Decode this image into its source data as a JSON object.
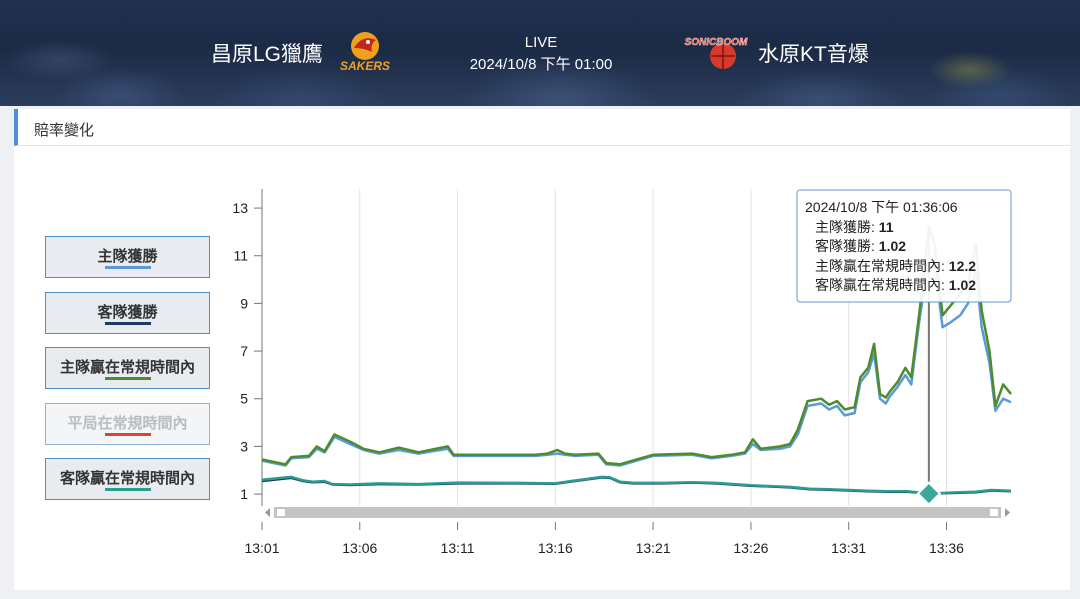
{
  "header": {
    "home_team": "昌原LG獵鷹",
    "home_logo_text": "SAKERS",
    "status": "LIVE",
    "datetime": "2024/10/8 下午 01:00",
    "away_team": "水原KT音爆",
    "away_logo_text": "SONICBOOM"
  },
  "panel": {
    "title": "賠率變化"
  },
  "legend": [
    {
      "label": "主隊獲勝",
      "color": "#5b9bd5",
      "active": true
    },
    {
      "label": "客隊獲勝",
      "color": "#1f3864",
      "active": true
    },
    {
      "label": "主隊贏在常規時間內",
      "color": "#4f8a2b",
      "active": true
    },
    {
      "label": "平局在常規時間內",
      "color": "#e0413a",
      "active": false
    },
    {
      "label": "客隊贏在常規時間內",
      "color": "#2a9d8f",
      "active": true
    }
  ],
  "tooltip": {
    "time": "2024/10/8 下午 01:36:06",
    "rows": [
      {
        "label": "主隊獲勝: ",
        "value": "11"
      },
      {
        "label": "客隊獲勝: ",
        "value": "1.02"
      },
      {
        "label": "主隊贏在常規時間內: ",
        "value": "12.2"
      },
      {
        "label": "客隊贏在常規時間內: ",
        "value": "1.02"
      }
    ]
  },
  "chart_data": {
    "type": "line",
    "x_unit": "minutes",
    "xlim": [
      1,
      39.3
    ],
    "ylim": [
      0.5,
      13.8
    ],
    "x_ticks": [
      1,
      6,
      11,
      16,
      21,
      26,
      31,
      36
    ],
    "x_tick_labels": [
      "13:01",
      "13:06",
      "13:11",
      "13:16",
      "13:21",
      "13:26",
      "13:31",
      "13:36"
    ],
    "y_ticks": [
      1,
      3,
      5,
      7,
      9,
      11,
      13
    ],
    "hover_x": 35.1,
    "series": [
      {
        "name": "主隊獲勝",
        "color": "#5b9bd5",
        "x": [
          1,
          2.2,
          2.5,
          3.4,
          3.8,
          4.2,
          4.7,
          5.5,
          6.2,
          7,
          8,
          9,
          10.5,
          10.8,
          13,
          15,
          15.6,
          16.1,
          16.5,
          17,
          18.2,
          18.6,
          19.3,
          21,
          23,
          24,
          25,
          25.7,
          26.1,
          26.5,
          27.5,
          28,
          28.4,
          28.9,
          29.6,
          30,
          30.4,
          30.8,
          31.3,
          31.6,
          32,
          32.3,
          32.6,
          32.9,
          33.1,
          33.5,
          33.9,
          34.2,
          34.6,
          35.1,
          35.4,
          35.8,
          36.2,
          36.7,
          37.1,
          37.5,
          37.8,
          38.2,
          38.5,
          38.9,
          39.3
        ],
        "y": [
          2.4,
          2.2,
          2.5,
          2.55,
          2.9,
          2.75,
          3.4,
          3.1,
          2.85,
          2.7,
          2.85,
          2.7,
          2.9,
          2.6,
          2.6,
          2.6,
          2.65,
          2.7,
          2.65,
          2.6,
          2.65,
          2.25,
          2.2,
          2.6,
          2.65,
          2.5,
          2.6,
          2.7,
          3.1,
          2.85,
          2.9,
          3.0,
          3.5,
          4.7,
          4.8,
          4.55,
          4.7,
          4.3,
          4.4,
          5.7,
          6.1,
          6.9,
          5.0,
          4.8,
          5.1,
          5.5,
          6.0,
          5.6,
          8.2,
          11.0,
          10.6,
          8.0,
          8.2,
          8.5,
          9.0,
          10.4,
          8.0,
          6.5,
          4.5,
          5.0,
          4.85
        ]
      },
      {
        "name": "客隊獲勝",
        "color": "#1f3864",
        "x": [
          1,
          2.5,
          3.1,
          3.6,
          4.2,
          4.6,
          5.5,
          7,
          9,
          11,
          14,
          16,
          17,
          18.4,
          18.8,
          19.3,
          20,
          21.5,
          23,
          24.2,
          26,
          28,
          29,
          30,
          31,
          32,
          33,
          34,
          35.1,
          36.5,
          37.5,
          38.3,
          39.3
        ],
        "y": [
          1.55,
          1.68,
          1.55,
          1.5,
          1.52,
          1.4,
          1.38,
          1.42,
          1.4,
          1.45,
          1.45,
          1.43,
          1.55,
          1.7,
          1.68,
          1.5,
          1.45,
          1.45,
          1.48,
          1.45,
          1.35,
          1.28,
          1.2,
          1.18,
          1.15,
          1.12,
          1.1,
          1.1,
          1.02,
          1.05,
          1.08,
          1.15,
          1.12
        ]
      },
      {
        "name": "主隊贏在常規時間內",
        "color": "#4f8a2b",
        "x": [
          1,
          2.2,
          2.5,
          3.4,
          3.8,
          4.2,
          4.7,
          5.5,
          6.2,
          7,
          8,
          9,
          10.5,
          10.8,
          13,
          15,
          15.6,
          16.1,
          16.5,
          17,
          18.2,
          18.6,
          19.3,
          21,
          23,
          24,
          25,
          25.7,
          26.1,
          26.5,
          27.5,
          28,
          28.4,
          28.9,
          29.6,
          30,
          30.4,
          30.8,
          31.3,
          31.6,
          32,
          32.3,
          32.6,
          32.9,
          33.1,
          33.5,
          33.9,
          34.2,
          34.6,
          35.1,
          35.4,
          35.8,
          36.2,
          36.7,
          37.1,
          37.5,
          37.8,
          38.2,
          38.5,
          38.9,
          39.3
        ],
        "y": [
          2.45,
          2.25,
          2.55,
          2.6,
          3.0,
          2.8,
          3.5,
          3.2,
          2.9,
          2.75,
          2.95,
          2.75,
          3.0,
          2.65,
          2.65,
          2.65,
          2.7,
          2.85,
          2.7,
          2.65,
          2.7,
          2.3,
          2.25,
          2.65,
          2.7,
          2.55,
          2.65,
          2.75,
          3.3,
          2.9,
          3.0,
          3.1,
          3.7,
          4.9,
          5.0,
          4.75,
          4.9,
          4.55,
          4.65,
          5.9,
          6.3,
          7.3,
          5.2,
          5.05,
          5.3,
          5.7,
          6.3,
          5.9,
          8.5,
          12.2,
          11.5,
          8.5,
          8.9,
          9.4,
          9.8,
          11.5,
          8.7,
          7.0,
          4.7,
          5.6,
          5.2
        ]
      },
      {
        "name": "客隊贏在常規時間內",
        "color": "#2a9d8f",
        "x": [
          1,
          2.5,
          3.1,
          3.6,
          4.2,
          4.6,
          5.5,
          7,
          9,
          11,
          14,
          16,
          17,
          18.4,
          18.8,
          19.3,
          20,
          21.5,
          23,
          24.2,
          26,
          28,
          29,
          30,
          31,
          32,
          33,
          34,
          35.1,
          36.5,
          37.5,
          38.3,
          39.3
        ],
        "y": [
          1.6,
          1.72,
          1.58,
          1.52,
          1.55,
          1.42,
          1.4,
          1.45,
          1.42,
          1.48,
          1.47,
          1.45,
          1.57,
          1.72,
          1.7,
          1.52,
          1.47,
          1.47,
          1.5,
          1.47,
          1.37,
          1.3,
          1.22,
          1.2,
          1.17,
          1.14,
          1.12,
          1.12,
          1.02,
          1.07,
          1.1,
          1.17,
          1.14
        ]
      }
    ]
  }
}
